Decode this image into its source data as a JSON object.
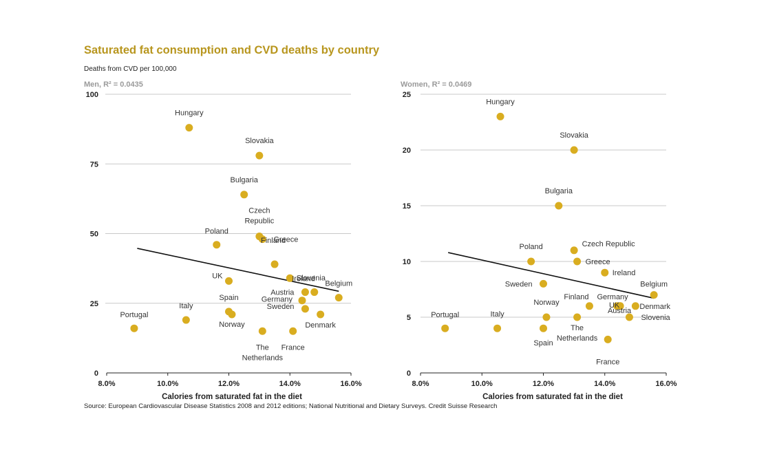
{
  "title": "Saturated fat consumption and CVD deaths by country",
  "subtitle": "Deaths from CVD per 100,000",
  "source": "Source: European Cardiovascular Disease Statistics 2008 and 2012 editions; National Nutritional and Dietary Surveys. Credit Suisse Research",
  "colors": {
    "title": "#b8961e",
    "point": "#d9ad20",
    "grid": "#c8c8c8",
    "trend": "#111111"
  },
  "chart_data": [
    {
      "type": "scatter",
      "title": "Men, R² = 0.0435",
      "xlabel": "Calories from saturated fat in the diet",
      "ylabel": "Deaths from CVD per 100,000",
      "xlim": [
        8,
        16
      ],
      "ylim": [
        0,
        100
      ],
      "x_ticks": [
        "8.0%",
        "10.0%",
        "12.0%",
        "14.0%",
        "16.0%"
      ],
      "y_ticks": [
        "0",
        "25",
        "50",
        "75",
        "100"
      ],
      "grid": true,
      "trendline": {
        "x": [
          9.0,
          15.6
        ],
        "y": [
          44.7,
          29.3
        ]
      },
      "points": [
        {
          "label": "Hungary",
          "x": 10.7,
          "y": 88
        },
        {
          "label": "Slovakia",
          "x": 13.0,
          "y": 78
        },
        {
          "label": "Bulgaria",
          "x": 12.5,
          "y": 64
        },
        {
          "label": "Czech Republic",
          "x": 13.0,
          "y": 49
        },
        {
          "label": "Greece",
          "x": 13.1,
          "y": 48
        },
        {
          "label": "Poland",
          "x": 11.6,
          "y": 46
        },
        {
          "label": "Finland",
          "x": 13.5,
          "y": 39
        },
        {
          "label": "Ireland",
          "x": 14.0,
          "y": 34
        },
        {
          "label": "UK",
          "x": 12.0,
          "y": 33
        },
        {
          "label": "Slovenia",
          "x": 14.8,
          "y": 29
        },
        {
          "label": "Austria",
          "x": 14.5,
          "y": 29
        },
        {
          "label": "Belgium",
          "x": 15.6,
          "y": 27
        },
        {
          "label": "Germany",
          "x": 14.4,
          "y": 26
        },
        {
          "label": "Sweden",
          "x": 14.5,
          "y": 23
        },
        {
          "label": "Spain",
          "x": 12.0,
          "y": 22
        },
        {
          "label": "Norway",
          "x": 12.1,
          "y": 21
        },
        {
          "label": "Denmark",
          "x": 15.0,
          "y": 21
        },
        {
          "label": "Italy",
          "x": 10.6,
          "y": 19
        },
        {
          "label": "Portugal",
          "x": 8.9,
          "y": 16
        },
        {
          "label": "The Netherlands",
          "x": 13.1,
          "y": 15
        },
        {
          "label": "France",
          "x": 14.1,
          "y": 15
        }
      ]
    },
    {
      "type": "scatter",
      "title": "Women, R² = 0.0469",
      "xlabel": "Calories from saturated fat in the diet",
      "ylabel": "Deaths from CVD per 100,000",
      "xlim": [
        8,
        16
      ],
      "ylim": [
        0,
        25
      ],
      "x_ticks": [
        "8.0%",
        "10.0%",
        "12.0%",
        "14.0%",
        "16.0%"
      ],
      "y_ticks": [
        "0",
        "5",
        "10",
        "15",
        "20",
        "25"
      ],
      "grid": true,
      "trendline": {
        "x": [
          8.9,
          15.6
        ],
        "y": [
          10.8,
          6.7
        ]
      },
      "points": [
        {
          "label": "Hungary",
          "x": 10.6,
          "y": 23
        },
        {
          "label": "Slovakia",
          "x": 13.0,
          "y": 20
        },
        {
          "label": "Bulgaria",
          "x": 12.5,
          "y": 15
        },
        {
          "label": "Czech Republic",
          "x": 13.0,
          "y": 11
        },
        {
          "label": "Poland",
          "x": 11.6,
          "y": 10
        },
        {
          "label": "Greece",
          "x": 13.1,
          "y": 10
        },
        {
          "label": "Ireland",
          "x": 14.0,
          "y": 9
        },
        {
          "label": "Sweden",
          "x": 12.0,
          "y": 8
        },
        {
          "label": "Belgium",
          "x": 15.6,
          "y": 7
        },
        {
          "label": "Finland",
          "x": 13.5,
          "y": 6
        },
        {
          "label": "UK",
          "x": 14.4,
          "y": 6
        },
        {
          "label": "Germany",
          "x": 14.5,
          "y": 6
        },
        {
          "label": "Denmark",
          "x": 15.0,
          "y": 6
        },
        {
          "label": "Austria",
          "x": 14.5,
          "y": 6
        },
        {
          "label": "Norway",
          "x": 12.1,
          "y": 5
        },
        {
          "label": "The Netherlands",
          "x": 13.1,
          "y": 5
        },
        {
          "label": "Slovenia",
          "x": 14.8,
          "y": 5
        },
        {
          "label": "Portugal",
          "x": 8.8,
          "y": 4
        },
        {
          "label": "Italy",
          "x": 10.5,
          "y": 4
        },
        {
          "label": "Spain",
          "x": 12.0,
          "y": 4
        },
        {
          "label": "France",
          "x": 14.1,
          "y": 3
        }
      ]
    }
  ]
}
